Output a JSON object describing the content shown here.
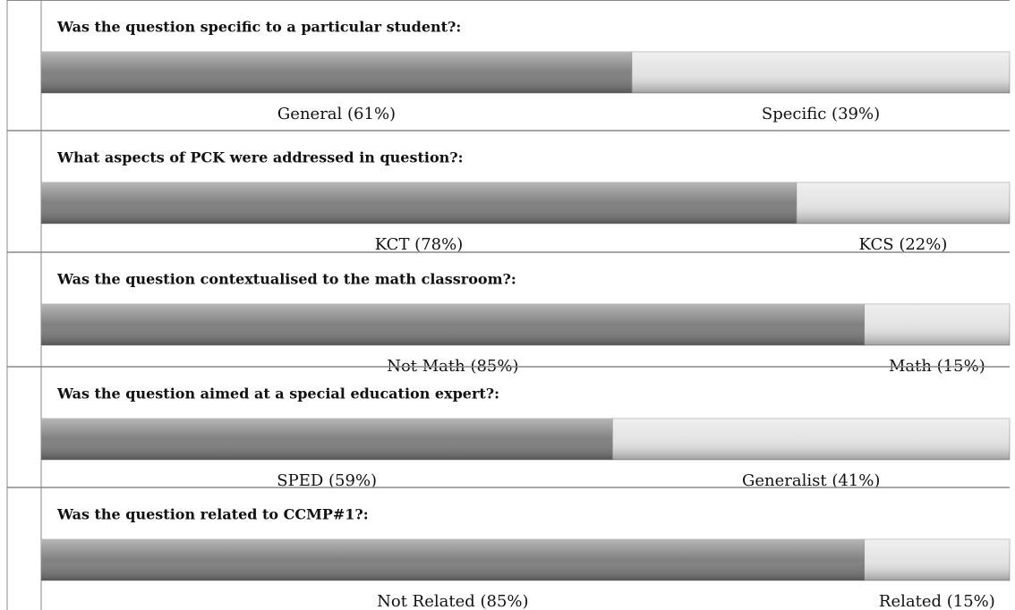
{
  "chart_data": [
    {
      "type": "bar",
      "title": "Was the question specific to a particular student?:",
      "values": [
        61,
        39
      ],
      "value_labels": [
        "General (61%)",
        "Specific (39%)"
      ],
      "colors": [
        "#7a7a7a",
        "#e2e2e2"
      ]
    },
    {
      "type": "bar",
      "title": "What aspects of PCK were addressed in question?:",
      "values": [
        78,
        22
      ],
      "value_labels": [
        "KCT (78%)",
        "KCS (22%)"
      ],
      "colors": [
        "#7a7a7a",
        "#e2e2e2"
      ]
    },
    {
      "type": "bar",
      "title": "Was the question contextualised to the math classroom?:",
      "values": [
        85,
        15
      ],
      "value_labels": [
        "Not Math (85%)",
        "Math (15%)"
      ],
      "colors": [
        "#7a7a7a",
        "#e2e2e2"
      ]
    },
    {
      "type": "bar",
      "title": "Was the question aimed at a special education expert?:",
      "values": [
        59,
        41
      ],
      "value_labels": [
        "SPED (59%)",
        "Generalist (41%)"
      ],
      "colors": [
        "#7a7a7a",
        "#e2e2e2"
      ]
    },
    {
      "type": "bar",
      "title": "Was the question related to CCMP#1?:",
      "values": [
        85,
        15
      ],
      "value_labels": [
        "Not Related (85%)",
        "Related (15%)"
      ],
      "colors": [
        "#7a7a7a",
        "#e2e2e2"
      ]
    }
  ]
}
